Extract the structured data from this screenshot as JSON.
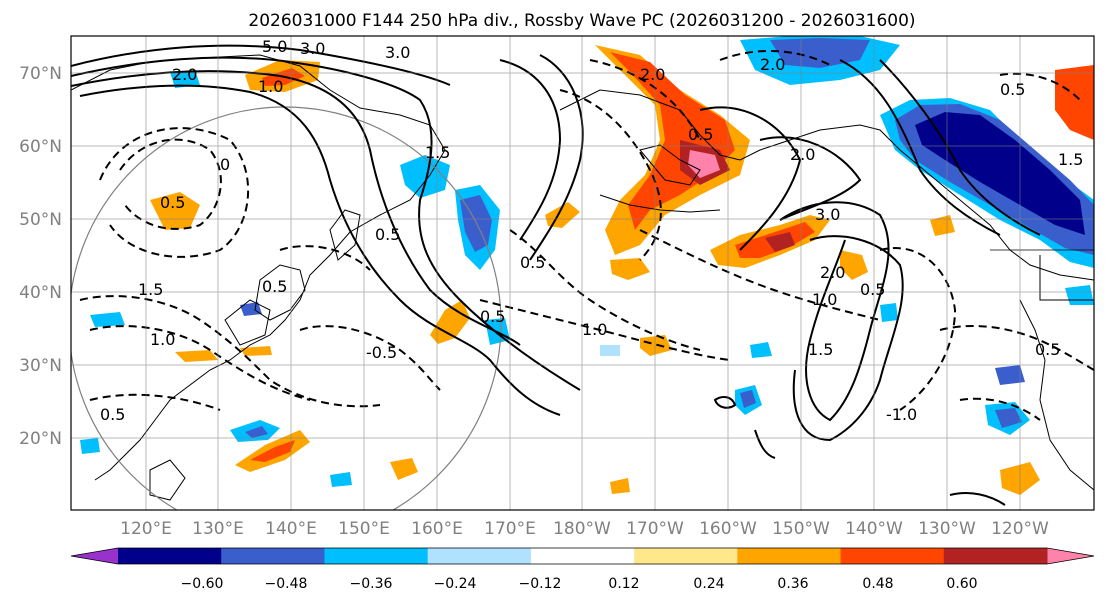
{
  "title": "2026031000 F144 250 hPa div., Rossby Wave PC (2026031200 - 2026031600)",
  "map": {
    "lat_labels": [
      "70°N",
      "60°N",
      "50°N",
      "40°N",
      "30°N",
      "20°N"
    ],
    "lon_labels": [
      "120°E",
      "130°E",
      "140°E",
      "150°E",
      "160°E",
      "170°E",
      "180°W",
      "170°W",
      "160°W",
      "150°W",
      "140°W",
      "130°W",
      "120°W"
    ],
    "contour_labels": [
      "5.0",
      "3.0",
      "3.0",
      "2.0",
      "1.0",
      "1.5",
      "2.0",
      "2.0",
      "3.0",
      "0.5",
      "2.0",
      "0.5",
      "0",
      "0.5",
      "1.5",
      "1.0",
      "0.5",
      "0.5",
      "1.0",
      "0.5",
      "0.5",
      "1.5",
      "1.0",
      "2.0",
      "0.5",
      "-0.5",
      "-1.0",
      "0.5",
      "1.5",
      "0.5"
    ]
  },
  "colorbar": {
    "tick_labels": [
      "−0.60",
      "−0.48",
      "−0.36",
      "−0.24",
      "−0.12",
      "0.12",
      "0.24",
      "0.36",
      "0.48",
      "0.60"
    ],
    "colors": [
      "#9932cc",
      "#00008b",
      "#3a5fcd",
      "#00bfff",
      "#b0e2ff",
      "#ffffff",
      "#ffe88c",
      "#ffa500",
      "#ff4500",
      "#b22222",
      "#ff82ab"
    ]
  }
}
